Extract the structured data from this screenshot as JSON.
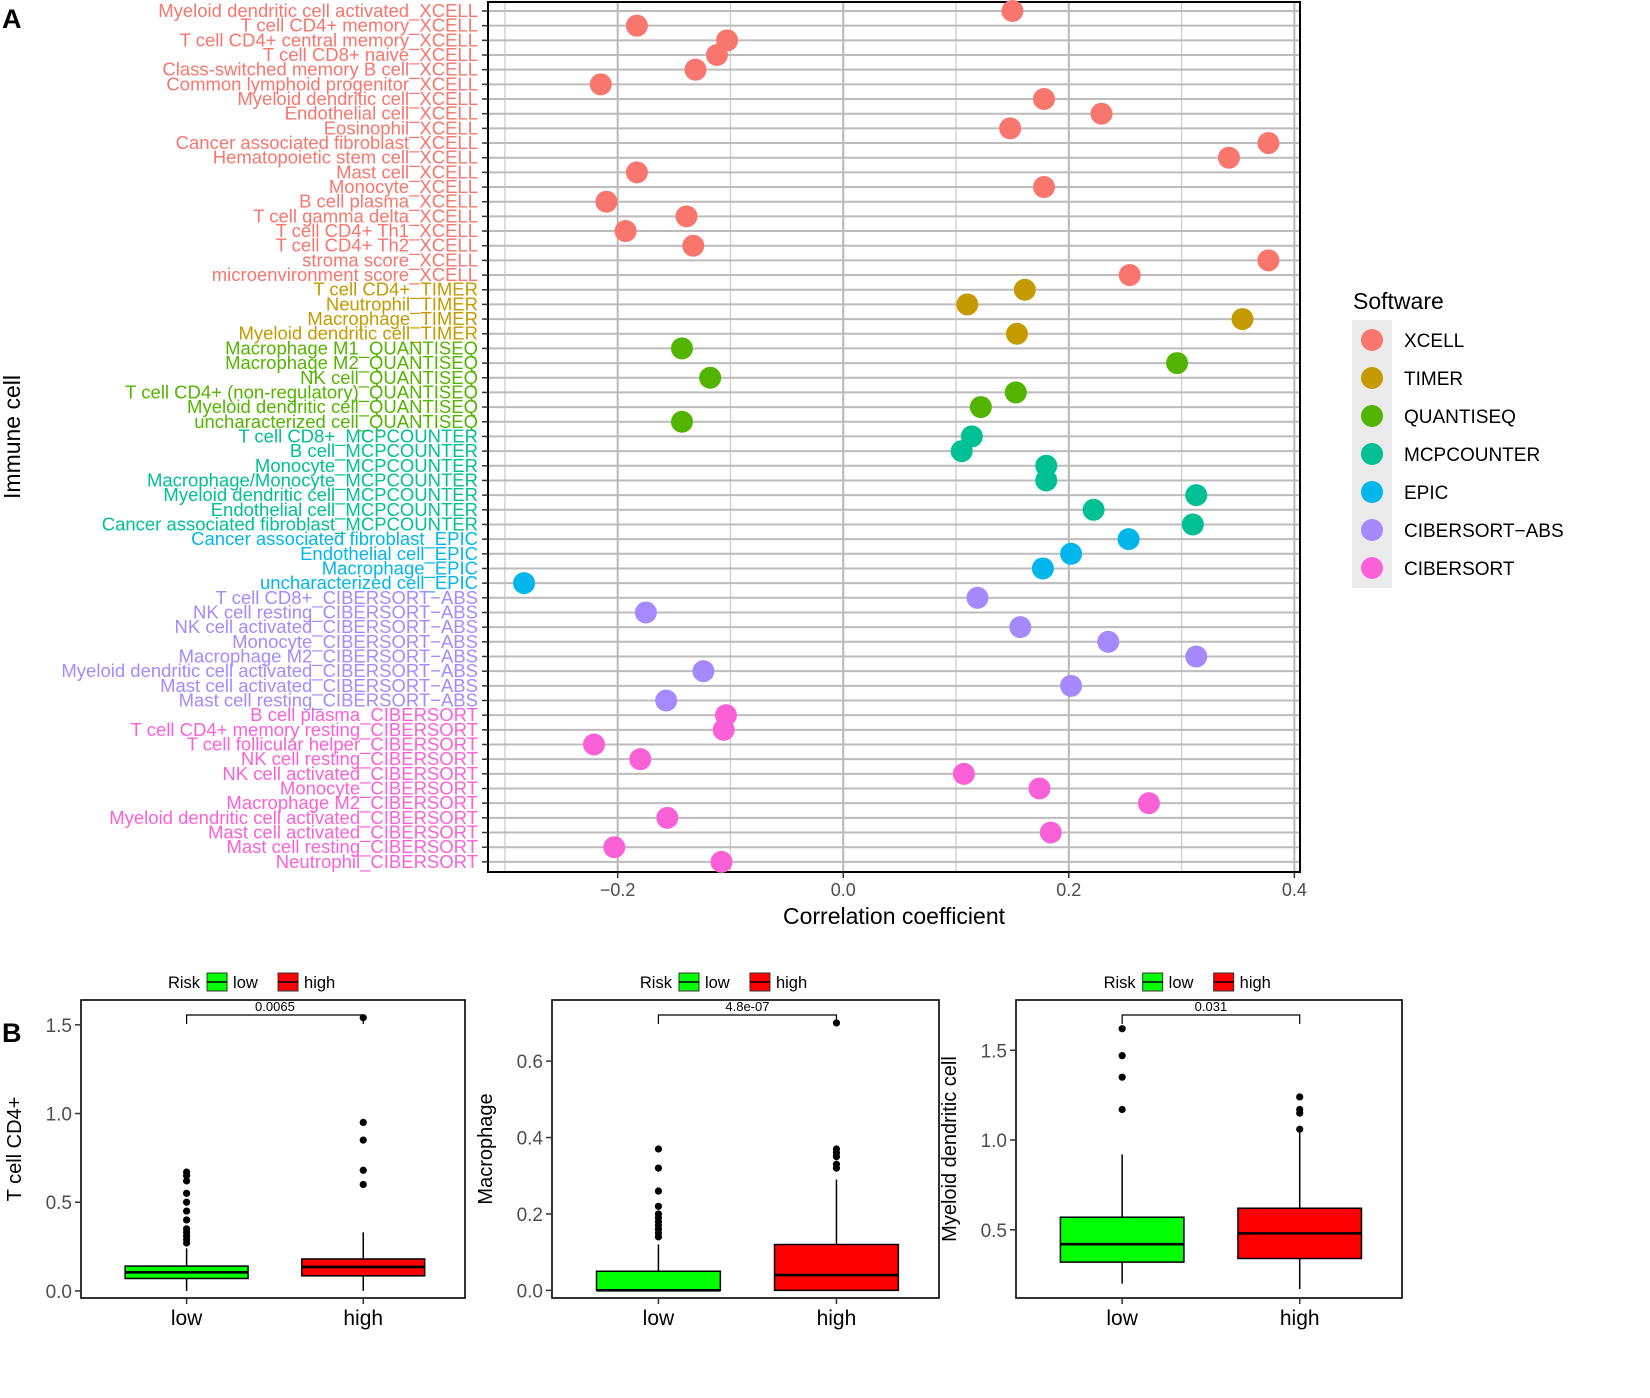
{
  "figure": {
    "panel_a_letter": "A",
    "panel_b_letter": "B"
  },
  "chart_data": [
    {
      "type": "scatter",
      "panel": "A",
      "title": "",
      "xlabel": "Correlation coefficient",
      "ylabel": "Immune cell",
      "xlim": [
        -0.315,
        0.405
      ],
      "xticks": [
        -0.2,
        0.0,
        0.2,
        0.4
      ],
      "xtick_labels": [
        "−0.2",
        "0.0",
        "0.2",
        "0.4"
      ],
      "grid": true,
      "legend": {
        "title": "Software",
        "position": "right",
        "entries": [
          {
            "name": "XCELL",
            "color": "#F8766D"
          },
          {
            "name": "TIMER",
            "color": "#C49A00"
          },
          {
            "name": "QUANTISEQ",
            "color": "#53B400"
          },
          {
            "name": "MCPCOUNTER",
            "color": "#00C094"
          },
          {
            "name": "EPIC",
            "color": "#00B6EB"
          },
          {
            "name": "CIBERSORT−ABS",
            "color": "#A58AFF"
          },
          {
            "name": "CIBERSORT",
            "color": "#FB61D7"
          }
        ]
      },
      "points": [
        {
          "label": "Myeloid dendritic cell activated_XCELL",
          "software": "XCELL",
          "x": 0.15
        },
        {
          "label": "T cell CD4+ memory_XCELL",
          "software": "XCELL",
          "x": -0.183
        },
        {
          "label": "T cell CD4+ central memory_XCELL",
          "software": "XCELL",
          "x": -0.103
        },
        {
          "label": "T cell CD8+ naive_XCELL",
          "software": "XCELL",
          "x": -0.112
        },
        {
          "label": "Class-switched memory B cell_XCELL",
          "software": "XCELL",
          "x": -0.131
        },
        {
          "label": "Common lymphoid progenitor_XCELL",
          "software": "XCELL",
          "x": -0.215
        },
        {
          "label": "Myeloid dendritic cell_XCELL",
          "software": "XCELL",
          "x": 0.178
        },
        {
          "label": "Endothelial cell_XCELL",
          "software": "XCELL",
          "x": 0.229
        },
        {
          "label": "Eosinophil_XCELL",
          "software": "XCELL",
          "x": 0.148
        },
        {
          "label": "Cancer associated fibroblast_XCELL",
          "software": "XCELL",
          "x": 0.377
        },
        {
          "label": "Hematopoietic stem cell_XCELL",
          "software": "XCELL",
          "x": 0.342
        },
        {
          "label": "Mast cell_XCELL",
          "software": "XCELL",
          "x": -0.183
        },
        {
          "label": "Monocyte_XCELL",
          "software": "XCELL",
          "x": 0.178
        },
        {
          "label": "B cell plasma_XCELL",
          "software": "XCELL",
          "x": -0.21
        },
        {
          "label": "T cell gamma delta_XCELL",
          "software": "XCELL",
          "x": -0.139
        },
        {
          "label": "T cell CD4+ Th1_XCELL",
          "software": "XCELL",
          "x": -0.193
        },
        {
          "label": "T cell CD4+ Th2_XCELL",
          "software": "XCELL",
          "x": -0.133
        },
        {
          "label": "stroma score_XCELL",
          "software": "XCELL",
          "x": 0.377
        },
        {
          "label": "microenvironment score_XCELL",
          "software": "XCELL",
          "x": 0.254
        },
        {
          "label": "T cell CD4+_TIMER",
          "software": "TIMER",
          "x": 0.161
        },
        {
          "label": "Neutrophil_TIMER",
          "software": "TIMER",
          "x": 0.11
        },
        {
          "label": "Macrophage_TIMER",
          "software": "TIMER",
          "x": 0.354
        },
        {
          "label": "Myeloid dendritic cell_TIMER",
          "software": "TIMER",
          "x": 0.154
        },
        {
          "label": "Macrophage M1_QUANTISEQ",
          "software": "QUANTISEQ",
          "x": -0.143
        },
        {
          "label": "Macrophage M2_QUANTISEQ",
          "software": "QUANTISEQ",
          "x": 0.296
        },
        {
          "label": "NK cell_QUANTISEQ",
          "software": "QUANTISEQ",
          "x": -0.118
        },
        {
          "label": "T cell CD4+ (non-regulatory)_QUANTISEQ",
          "software": "QUANTISEQ",
          "x": 0.153
        },
        {
          "label": "Myeloid dendritic cell_QUANTISEQ",
          "software": "QUANTISEQ",
          "x": 0.122
        },
        {
          "label": "uncharacterized cell_QUANTISEQ",
          "software": "QUANTISEQ",
          "x": -0.143
        },
        {
          "label": "T cell CD8+_MCPCOUNTER",
          "software": "MCPCOUNTER",
          "x": 0.114
        },
        {
          "label": "B cell_MCPCOUNTER",
          "software": "MCPCOUNTER",
          "x": 0.105
        },
        {
          "label": "Monocyte_MCPCOUNTER",
          "software": "MCPCOUNTER",
          "x": 0.18
        },
        {
          "label": "Macrophage/Monocyte_MCPCOUNTER",
          "software": "MCPCOUNTER",
          "x": 0.18
        },
        {
          "label": "Myeloid dendritic cell_MCPCOUNTER",
          "software": "MCPCOUNTER",
          "x": 0.313
        },
        {
          "label": "Endothelial cell_MCPCOUNTER",
          "software": "MCPCOUNTER",
          "x": 0.222
        },
        {
          "label": "Cancer associated fibroblast_MCPCOUNTER",
          "software": "MCPCOUNTER",
          "x": 0.31
        },
        {
          "label": "Cancer associated fibroblast_EPIC",
          "software": "EPIC",
          "x": 0.253
        },
        {
          "label": "Endothelial cell_EPIC",
          "software": "EPIC",
          "x": 0.202
        },
        {
          "label": "Macrophage_EPIC",
          "software": "EPIC",
          "x": 0.177
        },
        {
          "label": "uncharacterized cell_EPIC",
          "software": "EPIC",
          "x": -0.283
        },
        {
          "label": "T cell CD8+_CIBERSORT−ABS",
          "software": "CIBERSORT−ABS",
          "x": 0.119
        },
        {
          "label": "NK cell resting_CIBERSORT−ABS",
          "software": "CIBERSORT−ABS",
          "x": -0.175
        },
        {
          "label": "NK cell activated_CIBERSORT−ABS",
          "software": "CIBERSORT−ABS",
          "x": 0.157
        },
        {
          "label": "Monocyte_CIBERSORT−ABS",
          "software": "CIBERSORT−ABS",
          "x": 0.235
        },
        {
          "label": "Macrophage M2_CIBERSORT−ABS",
          "software": "CIBERSORT−ABS",
          "x": 0.313
        },
        {
          "label": "Myeloid dendritic cell activated_CIBERSORT−ABS",
          "software": "CIBERSORT−ABS",
          "x": -0.124
        },
        {
          "label": "Mast cell activated_CIBERSORT−ABS",
          "software": "CIBERSORT−ABS",
          "x": 0.202
        },
        {
          "label": "Mast cell resting_CIBERSORT−ABS",
          "software": "CIBERSORT−ABS",
          "x": -0.157
        },
        {
          "label": "B cell plasma_CIBERSORT",
          "software": "CIBERSORT",
          "x": -0.104
        },
        {
          "label": "T cell CD4+ memory resting_CIBERSORT",
          "software": "CIBERSORT",
          "x": -0.106
        },
        {
          "label": "T cell follicular helper_CIBERSORT",
          "software": "CIBERSORT",
          "x": -0.221
        },
        {
          "label": "NK cell resting_CIBERSORT",
          "software": "CIBERSORT",
          "x": -0.18
        },
        {
          "label": "NK cell activated_CIBERSORT",
          "software": "CIBERSORT",
          "x": 0.107
        },
        {
          "label": "Monocyte_CIBERSORT",
          "software": "CIBERSORT",
          "x": 0.174
        },
        {
          "label": "Macrophage M2_CIBERSORT",
          "software": "CIBERSORT",
          "x": 0.271
        },
        {
          "label": "Myeloid dendritic cell activated_CIBERSORT",
          "software": "CIBERSORT",
          "x": -0.156
        },
        {
          "label": "Mast cell activated_CIBERSORT",
          "software": "CIBERSORT",
          "x": 0.184
        },
        {
          "label": "Mast cell resting_CIBERSORT",
          "software": "CIBERSORT",
          "x": -0.203
        },
        {
          "label": "Neutrophil_CIBERSORT",
          "software": "CIBERSORT",
          "x": -0.108
        }
      ]
    },
    {
      "type": "box",
      "panel": "B",
      "ylabel": "T cell CD4+",
      "xlabel": "",
      "legend": {
        "title": "Risk",
        "entries": [
          {
            "name": "low",
            "color": "#00FF00"
          },
          {
            "name": "high",
            "color": "#FF0000"
          }
        ]
      },
      "ylim": [
        -0.04,
        1.64
      ],
      "yticks": [
        0.0,
        0.5,
        1.0,
        1.5
      ],
      "ytick_labels": [
        "0.0",
        "0.5",
        "1.0",
        "1.5"
      ],
      "pvalue": "0.0065",
      "groups": [
        {
          "name": "low",
          "color": "#00FF00",
          "q1": 0.07,
          "median": 0.105,
          "q3": 0.14,
          "whisker_low": 0.0,
          "whisker_high": 0.24,
          "outliers": [
            0.27,
            0.29,
            0.31,
            0.33,
            0.35,
            0.4,
            0.45,
            0.5,
            0.55,
            0.62,
            0.65,
            0.67
          ]
        },
        {
          "name": "high",
          "color": "#FF0000",
          "q1": 0.085,
          "median": 0.135,
          "q3": 0.18,
          "whisker_low": 0.0,
          "whisker_high": 0.33,
          "outliers": [
            0.6,
            0.68,
            0.85,
            0.95,
            1.54
          ]
        }
      ]
    },
    {
      "type": "box",
      "panel": "B",
      "ylabel": "Macrophage",
      "xlabel": "",
      "legend": {
        "title": "Risk",
        "entries": [
          {
            "name": "low",
            "color": "#00FF00"
          },
          {
            "name": "high",
            "color": "#FF0000"
          }
        ]
      },
      "ylim": [
        -0.02,
        0.76
      ],
      "yticks": [
        0.0,
        0.2,
        0.4,
        0.6
      ],
      "ytick_labels": [
        "0.0",
        "0.2",
        "0.4",
        "0.6"
      ],
      "pvalue": "4.8e-07",
      "groups": [
        {
          "name": "low",
          "color": "#00FF00",
          "q1": 0.0,
          "median": 0.0,
          "q3": 0.05,
          "whisker_low": 0.0,
          "whisker_high": 0.12,
          "outliers": [
            0.14,
            0.15,
            0.16,
            0.17,
            0.18,
            0.19,
            0.2,
            0.22,
            0.26,
            0.32,
            0.37
          ]
        },
        {
          "name": "high",
          "color": "#FF0000",
          "q1": 0.0,
          "median": 0.04,
          "q3": 0.12,
          "whisker_low": 0.0,
          "whisker_high": 0.29,
          "outliers": [
            0.32,
            0.33,
            0.35,
            0.36,
            0.37,
            0.7
          ]
        }
      ]
    },
    {
      "type": "box",
      "panel": "B",
      "ylabel": "Myeloid dendritic cell",
      "xlabel": "",
      "legend": {
        "title": "Risk",
        "entries": [
          {
            "name": "low",
            "color": "#00FF00"
          },
          {
            "name": "high",
            "color": "#FF0000"
          }
        ]
      },
      "ylim": [
        0.12,
        1.78
      ],
      "yticks": [
        0.5,
        1.0,
        1.5
      ],
      "ytick_labels": [
        "0.5",
        "1.0",
        "1.5"
      ],
      "pvalue": "0.031",
      "groups": [
        {
          "name": "low",
          "color": "#00FF00",
          "q1": 0.32,
          "median": 0.42,
          "q3": 0.57,
          "whisker_low": 0.2,
          "whisker_high": 0.92,
          "outliers": [
            1.17,
            1.35,
            1.47,
            1.62
          ]
        },
        {
          "name": "high",
          "color": "#FF0000",
          "q1": 0.34,
          "median": 0.48,
          "q3": 0.62,
          "whisker_low": 0.17,
          "whisker_high": 1.04,
          "outliers": [
            1.06,
            1.15,
            1.17,
            1.24
          ]
        }
      ]
    }
  ]
}
